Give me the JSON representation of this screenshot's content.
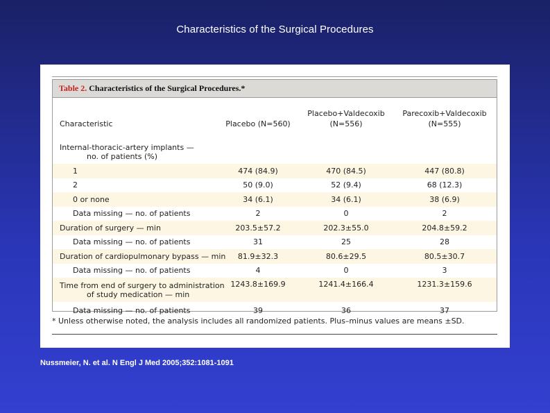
{
  "slide": {
    "title": "Characteristics of the Surgical Procedures",
    "citation": "Nussmeier, N. et al. N Engl J Med 2005;352:1081-1091"
  },
  "table": {
    "label": "Table 2.",
    "title": "Characteristics of the Surgical Procedures.*",
    "columns": [
      "Characteristic",
      "Placebo (N=560)",
      "Placebo+Valdecoxib\n(N=556)",
      "Parecoxib+Valdecoxib\n(N=555)"
    ],
    "rows": [
      {
        "label": "Internal-thoracic-artery implants —",
        "label2": "no. of patients (%)",
        "values": [
          "",
          "",
          ""
        ]
      },
      {
        "label": "1",
        "values": [
          "474 (84.9)",
          "470 (84.5)",
          "447 (80.8)"
        ]
      },
      {
        "label": "2",
        "values": [
          "50 (9.0)",
          "52 (9.4)",
          "68 (12.3)"
        ]
      },
      {
        "label": "0 or none",
        "values": [
          "34 (6.1)",
          "34 (6.1)",
          "38 (6.9)"
        ]
      },
      {
        "label": "Data missing — no. of patients",
        "values": [
          "2",
          "0",
          "2"
        ]
      },
      {
        "label": "Duration of surgery — min",
        "values": [
          "203.5±57.2",
          "202.3±55.0",
          "204.8±59.2"
        ]
      },
      {
        "label": "Data missing — no. of patients",
        "values": [
          "31",
          "25",
          "28"
        ]
      },
      {
        "label": "Duration of cardiopulmonary bypass — min",
        "values": [
          "81.9±32.3",
          "80.6±29.5",
          "80.5±30.7"
        ]
      },
      {
        "label": "Data missing — no. of patients",
        "values": [
          "4",
          "0",
          "3"
        ]
      },
      {
        "label": "Time from end of surgery to administration",
        "label2": "of study medication — min",
        "values": [
          "1243.8±169.9",
          "1241.4±166.4",
          "1231.3±159.6"
        ]
      },
      {
        "label": "Data missing — no. of patients",
        "values": [
          "39",
          "36",
          "37"
        ]
      }
    ],
    "footnote": "* Unless otherwise noted, the analysis includes all randomized patients. Plus–minus values are means ±SD."
  },
  "colors": {
    "background_top": "#1a2166",
    "background_bottom": "#3340d0",
    "caption_bg": "#dcdad6",
    "table_label": "#c8201e",
    "row_shade": "#fdf6e3"
  }
}
